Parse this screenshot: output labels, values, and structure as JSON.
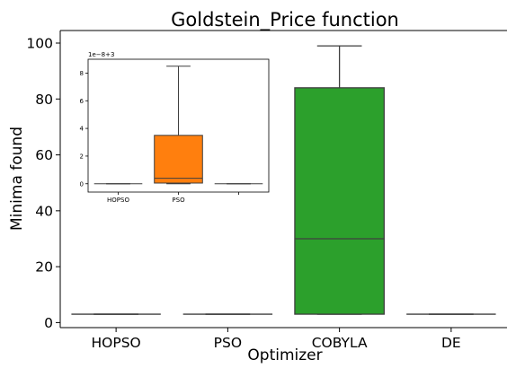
{
  "chart_data": {
    "type": "box",
    "title": "Goldstein_Price function",
    "xlabel": "Optimizer",
    "ylabel": "Minima found",
    "categories": [
      "HOPSO",
      "PSO",
      "COBYLA",
      "DE"
    ],
    "colors": [
      "#1f77b4",
      "#ff7f0e",
      "#2ca02c",
      "#d62728"
    ],
    "ylim": [
      -1.8,
      104.5
    ],
    "yticks": [
      0,
      20,
      40,
      60,
      80,
      100
    ],
    "series": [
      {
        "name": "HOPSO",
        "min": 3.0,
        "q1": 3.0,
        "median": 3.0,
        "q3": 3.0,
        "max": 3.0
      },
      {
        "name": "PSO",
        "min": 3.0,
        "q1": 3.0,
        "median": 3.0,
        "q3": 3.0,
        "max": 3.0
      },
      {
        "name": "COBYLA",
        "min": 3.0,
        "q1": 3.0,
        "median": 30.0,
        "q3": 84.0,
        "max": 99.0
      },
      {
        "name": "DE",
        "min": 3.0,
        "q1": 3.0,
        "median": 3.0,
        "q3": 3.0,
        "max": 3.0
      }
    ],
    "inset": {
      "categories": [
        "HOPSO",
        "PSO",
        ""
      ],
      "offset_label": "1e−8+3",
      "ylim": [
        -0.6,
        9.0
      ],
      "yticks": [
        0,
        2,
        4,
        6,
        8
      ],
      "series": [
        {
          "name": "HOPSO",
          "min": 0.0,
          "q1": 0.0,
          "median": 0.0,
          "q3": 0.0,
          "max": 0.0
        },
        {
          "name": "PSO",
          "min": 0.0,
          "q1": 0.05,
          "median": 0.4,
          "q3": 3.5,
          "max": 8.5
        },
        {
          "name": "",
          "min": 0.0,
          "q1": 0.0,
          "median": 0.0,
          "q3": 0.0,
          "max": 0.0
        }
      ]
    }
  }
}
